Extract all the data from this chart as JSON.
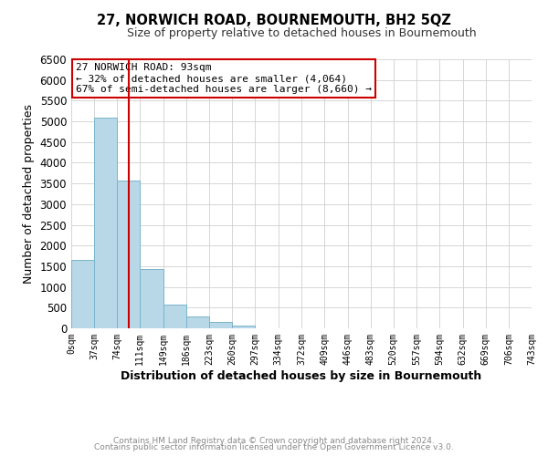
{
  "title": "27, NORWICH ROAD, BOURNEMOUTH, BH2 5QZ",
  "subtitle": "Size of property relative to detached houses in Bournemouth",
  "xlabel": "Distribution of detached houses by size in Bournemouth",
  "ylabel": "Number of detached properties",
  "bar_values": [
    1650,
    5100,
    3580,
    1430,
    580,
    295,
    145,
    60,
    0,
    0,
    0,
    0,
    0,
    0,
    0,
    0,
    0,
    0,
    0
  ],
  "bin_edges": [
    0,
    37,
    74,
    111,
    149,
    186,
    223,
    260,
    297,
    334,
    372,
    409,
    446,
    483,
    520,
    557,
    594,
    632,
    669,
    706
  ],
  "tick_labels": [
    "0sqm",
    "37sqm",
    "74sqm",
    "111sqm",
    "149sqm",
    "186sqm",
    "223sqm",
    "260sqm",
    "297sqm",
    "334sqm",
    "372sqm",
    "409sqm",
    "446sqm",
    "483sqm",
    "520sqm",
    "557sqm",
    "594sqm",
    "632sqm",
    "669sqm",
    "706sqm",
    "743sqm"
  ],
  "bar_color": "#b8d8e8",
  "bar_edgecolor": "#7ab4cc",
  "vline_x": 93,
  "vline_color": "#cc0000",
  "ylim": [
    0,
    6500
  ],
  "xlim": [
    0,
    743
  ],
  "yticks": [
    0,
    500,
    1000,
    1500,
    2000,
    2500,
    3000,
    3500,
    4000,
    4500,
    5000,
    5500,
    6000,
    6500
  ],
  "annotation_title": "27 NORWICH ROAD: 93sqm",
  "annotation_line1": "← 32% of detached houses are smaller (4,064)",
  "annotation_line2": "67% of semi-detached houses are larger (8,660) →",
  "annotation_box_color": "#ffffff",
  "annotation_box_edgecolor": "#cc0000",
  "footer1": "Contains HM Land Registry data © Crown copyright and database right 2024.",
  "footer2": "Contains public sector information licensed under the Open Government Licence v3.0.",
  "background_color": "#ffffff",
  "grid_color": "#d0d0d0"
}
